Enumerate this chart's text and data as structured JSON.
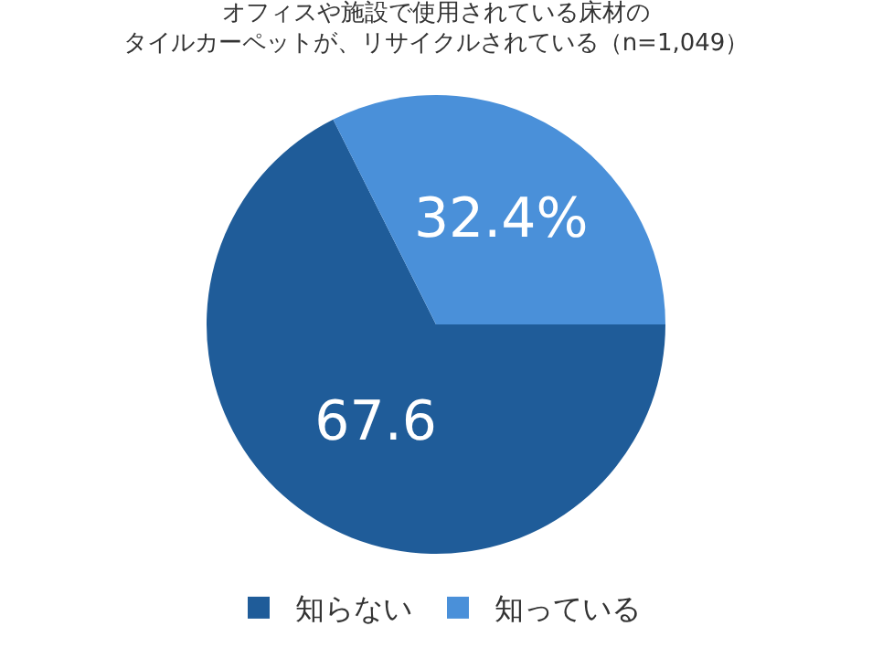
{
  "chart_data": {
    "type": "pie",
    "title": "オフィスや施設で使用されている床材の",
    "subtitle": "タイルカーペットが、リサイクルされている（n=1,049）",
    "categories": [
      "知らない",
      "知っている"
    ],
    "values": [
      67.6,
      32.4
    ],
    "colors": [
      "#1f5c99",
      "#4a90d9"
    ],
    "value_labels": [
      "67.6",
      "32.4%"
    ],
    "legend": "bottom"
  }
}
